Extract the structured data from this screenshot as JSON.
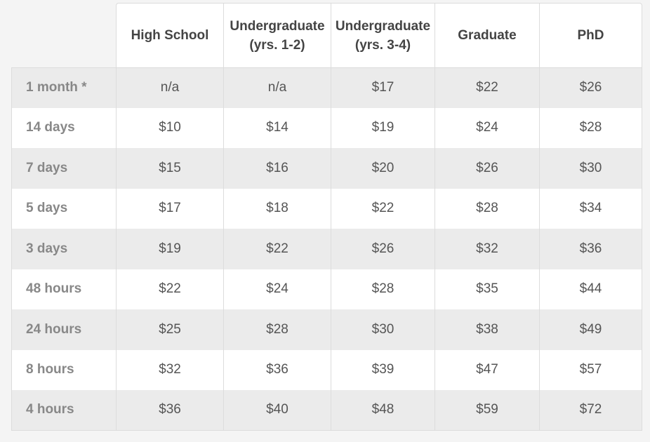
{
  "table": {
    "columns": [
      "High School",
      "Undergraduate\n(yrs. 1-2)",
      "Undergraduate\n(yrs. 3-4)",
      "Graduate",
      "PhD"
    ],
    "rows": [
      {
        "label": "1 month *",
        "values": [
          "n/a",
          "n/a",
          "$17",
          "$22",
          "$26"
        ]
      },
      {
        "label": "14 days",
        "values": [
          "$10",
          "$14",
          "$19",
          "$24",
          "$28"
        ]
      },
      {
        "label": "7 days",
        "values": [
          "$15",
          "$16",
          "$20",
          "$26",
          "$30"
        ]
      },
      {
        "label": "5 days",
        "values": [
          "$17",
          "$18",
          "$22",
          "$28",
          "$34"
        ]
      },
      {
        "label": "3 days",
        "values": [
          "$19",
          "$22",
          "$26",
          "$32",
          "$36"
        ]
      },
      {
        "label": "48 hours",
        "values": [
          "$22",
          "$24",
          "$28",
          "$35",
          "$44"
        ]
      },
      {
        "label": "24 hours",
        "values": [
          "$25",
          "$28",
          "$30",
          "$38",
          "$49"
        ]
      },
      {
        "label": "8 hours",
        "values": [
          "$32",
          "$36",
          "$39",
          "$47",
          "$57"
        ]
      },
      {
        "label": "4 hours",
        "values": [
          "$36",
          "$40",
          "$48",
          "$59",
          "$72"
        ]
      }
    ]
  }
}
